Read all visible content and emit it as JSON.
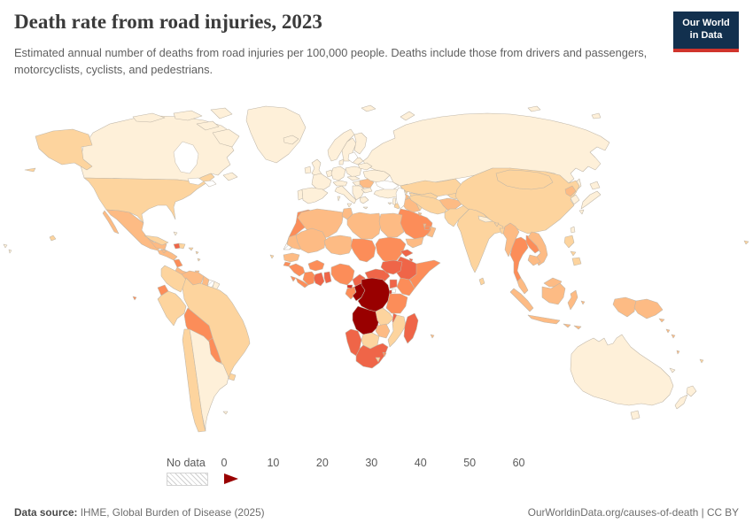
{
  "header": {
    "title": "Death rate from road injuries, 2023",
    "subtitle": "Estimated annual number of deaths from road injuries per 100,000 people. Deaths include those from drivers and passengers, motorcyclists, cyclists, and pedestrians.",
    "logo_line1": "Our World",
    "logo_line2": "in Data",
    "logo_bg": "#12304e",
    "logo_stripe": "#d0342c"
  },
  "legend": {
    "no_data_label": "No data"
  },
  "footer": {
    "source_label": "Data source:",
    "source_text": " IHME, Global Burden of Disease (2025)",
    "right_text": "OurWorldinData.org/causes-of-death | CC BY"
  },
  "chart_data": {
    "type": "choropleth_map",
    "title": "Death rate from road injuries, 2023",
    "unit": "deaths from road injuries per 100,000 people",
    "year": 2023,
    "tick_labels": [
      "0",
      "10",
      "20",
      "30",
      "40",
      "50",
      "60"
    ],
    "bin_ranges": [
      "0-10",
      "10-20",
      "20-30",
      "30-40",
      "40-50",
      "50-60",
      "60+"
    ],
    "bin_colors": [
      "#fef0d9",
      "#fdd49e",
      "#fdbb84",
      "#fc8d59",
      "#ef6548",
      "#d7301f",
      "#990000"
    ],
    "no_data_bin": 0,
    "region_bins": {
      "canada": 1,
      "greenland": 1,
      "alaska": 2,
      "usa": 2,
      "mexico": 3,
      "guatemala-honduras": 3,
      "nicaragua": 4,
      "costa-rica-panama": 3,
      "cuba": 2,
      "jamaica": 3,
      "haiti": 5,
      "dominican-republic": 2,
      "puerto-rico": 2,
      "bahamas": 1,
      "lesser-antilles": 2,
      "trinidad": 3,
      "hawaii": 2,
      "colombia": 2,
      "venezuela": 3,
      "guyana": 3,
      "suriname": 0,
      "french-guiana": 1,
      "ecuador": 4,
      "peru": 2,
      "brazil": 2,
      "bolivia": 4,
      "paraguay": 4,
      "chile": 2,
      "argentina": 1,
      "uruguay": 2,
      "falkland-islands": 1,
      "galapagos": 4,
      "iceland": 1,
      "norway": 1,
      "sweden": 1,
      "finland": 1,
      "denmark": 1,
      "united-kingdom": 1,
      "ireland": 1,
      "portugal": 1,
      "spain": 1,
      "france": 1,
      "benelux": 1,
      "germany": 1,
      "switzerland-austria": 1,
      "italy": 1,
      "sicily": 1,
      "sardinia": 1,
      "poland": 1,
      "czech-slovakia": 1,
      "hungary": 1,
      "balkans": 1,
      "greece": 1,
      "crete": 1,
      "romania": 3,
      "bulgaria": 1,
      "baltics": 1,
      "belarus": 1,
      "ukraine": 1,
      "turkey": 1,
      "cyprus": 1,
      "georgia": 2,
      "azerbaijan": 3,
      "armenia": 2,
      "svalbard": 1,
      "russia": 1,
      "kazakhstan": 2,
      "uzbekistan": 2,
      "turkmenistan": 2,
      "kyrgyzstan": 2,
      "tajikistan": 2,
      "syria": 3,
      "iraq": 3,
      "jordan": 2,
      "israel-lebanon": 1,
      "saudi-arabia": 4,
      "kuwait": 3,
      "qatar": 3,
      "uae": 4,
      "oman": 3,
      "yemen": 3,
      "iran": 2,
      "afghanistan": 3,
      "pakistan": 2,
      "india": 2,
      "nepal": 1,
      "bhutan": 2,
      "bangladesh": 2,
      "sri-lanka": 2,
      "china": 2,
      "mongolia": 2,
      "north-korea": 3,
      "south-korea": 1,
      "japan": 1,
      "taiwan": 1,
      "myanmar": 3,
      "thailand": 4,
      "laos": 4,
      "vietnam": 3,
      "cambodia": 3,
      "malaysia": 3,
      "indonesia": 3,
      "philippines": 2,
      "papua-new-guinea": 3,
      "morocco": 4,
      "western-sahara": 0,
      "algeria": 3,
      "tunisia": 3,
      "libya": 3,
      "egypt": 3,
      "mauritania": 3,
      "mali": 3,
      "niger": 3,
      "chad": 4,
      "sudan": 4,
      "eritrea": 5,
      "djibouti": 5,
      "ethiopia": 5,
      "somalia": 4,
      "senegal": 3,
      "guinea-bissau": 4,
      "guinea": 4,
      "sierra-leone": 4,
      "liberia": 4,
      "cote-divoire": 4,
      "ghana": 5,
      "togo-benin": 5,
      "burkina-faso": 4,
      "nigeria": 4,
      "cameroon": 5,
      "central-african-republic": 5,
      "south-sudan": 5,
      "uganda": 5,
      "kenya": 4,
      "rwanda-burundi": 6,
      "gabon": 4,
      "equatorial-guinea": 6,
      "congo": 7,
      "dr-congo": 7,
      "tanzania": 4,
      "angola": 7,
      "zambia": 2,
      "malawi": 5,
      "mozambique": 2,
      "zimbabwe": 3,
      "botswana": 2,
      "namibia": 5,
      "south-africa": 5,
      "lesotho": 2,
      "eswatini": 4,
      "madagascar": 5,
      "mauritius": 3,
      "cape-verde": 2,
      "australia": 1,
      "new-zealand": 1,
      "new-caledonia": 1,
      "fiji": 2,
      "solomon-islands": 3,
      "vanuatu": 3,
      "pacific-islands-west": 1,
      "pacific-islands-east": 2
    }
  }
}
